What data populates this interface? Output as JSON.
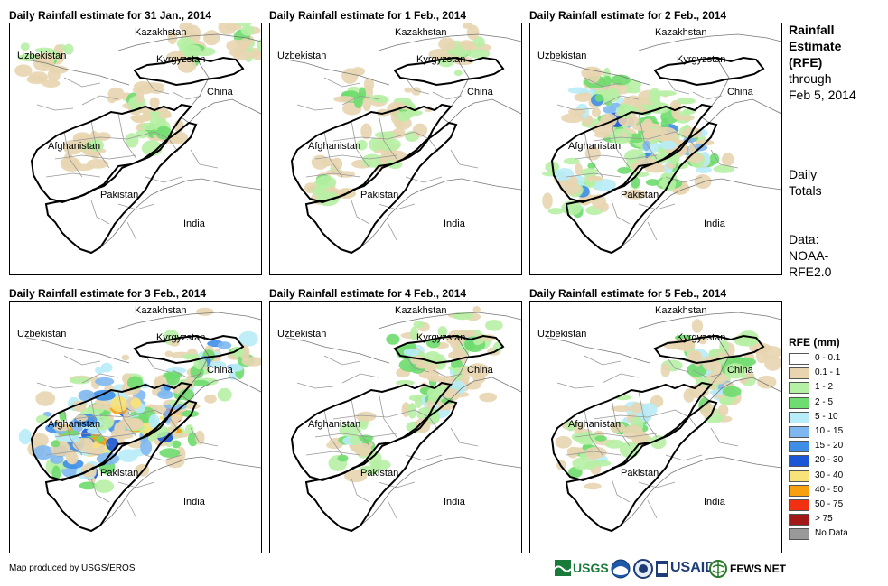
{
  "panels": [
    {
      "title": "Daily Rainfall estimate for 31 Jan., 2014",
      "intensity": 1
    },
    {
      "title": "Daily Rainfall estimate for 1 Feb., 2014",
      "intensity": 1
    },
    {
      "title": "Daily Rainfall estimate for 2 Feb., 2014",
      "intensity": 3
    },
    {
      "title": "Daily Rainfall estimate for 3 Feb., 2014",
      "intensity": 4
    },
    {
      "title": "Daily Rainfall estimate for 4 Feb., 2014",
      "intensity": 2
    },
    {
      "title": "Daily Rainfall estimate for 5 Feb., 2014",
      "intensity": 2
    }
  ],
  "places": {
    "kazakhstan": "Kazakhstan",
    "uzbekistan": "Uzbekistan",
    "kyrgyzstan": "Kyrgyzstan",
    "china": "China",
    "afghanistan": "Afghanistan",
    "pakistan": "Pakistan",
    "india": "India"
  },
  "side": {
    "title_line1": "Rainfall",
    "title_line2": "Estimate",
    "title_line3": "(RFE)",
    "through": "through",
    "date": "Feb 5, 2014",
    "daily1": "Daily",
    "daily2": "Totals",
    "data1": "Data:",
    "data2": "NOAA-",
    "data3": "RFE2.0"
  },
  "legend": {
    "title": "RFE (mm)",
    "items": [
      {
        "label": "0 - 0.1",
        "color": "#ffffff"
      },
      {
        "label": "0.1 - 1",
        "color": "#e8d5b0"
      },
      {
        "label": "1 - 2",
        "color": "#b6f0a4"
      },
      {
        "label": "2 - 5",
        "color": "#6edc6e"
      },
      {
        "label": "5 - 10",
        "color": "#b8ecf8"
      },
      {
        "label": "10 - 15",
        "color": "#7fb8f0"
      },
      {
        "label": "15 - 20",
        "color": "#3e8ee8"
      },
      {
        "label": "20 - 30",
        "color": "#1c56d6"
      },
      {
        "label": "30 - 40",
        "color": "#f8e27a"
      },
      {
        "label": "40 - 50",
        "color": "#f8a010"
      },
      {
        "label": "50 - 75",
        "color": "#f03010"
      },
      {
        "label": "> 75",
        "color": "#a01818"
      },
      {
        "label": "No Data",
        "color": "#999999"
      }
    ]
  },
  "credit": "Map produced by USGS/EROS",
  "logos": {
    "usgs": "USGS",
    "usaid": "USAID",
    "fews": "FEWS NET"
  }
}
